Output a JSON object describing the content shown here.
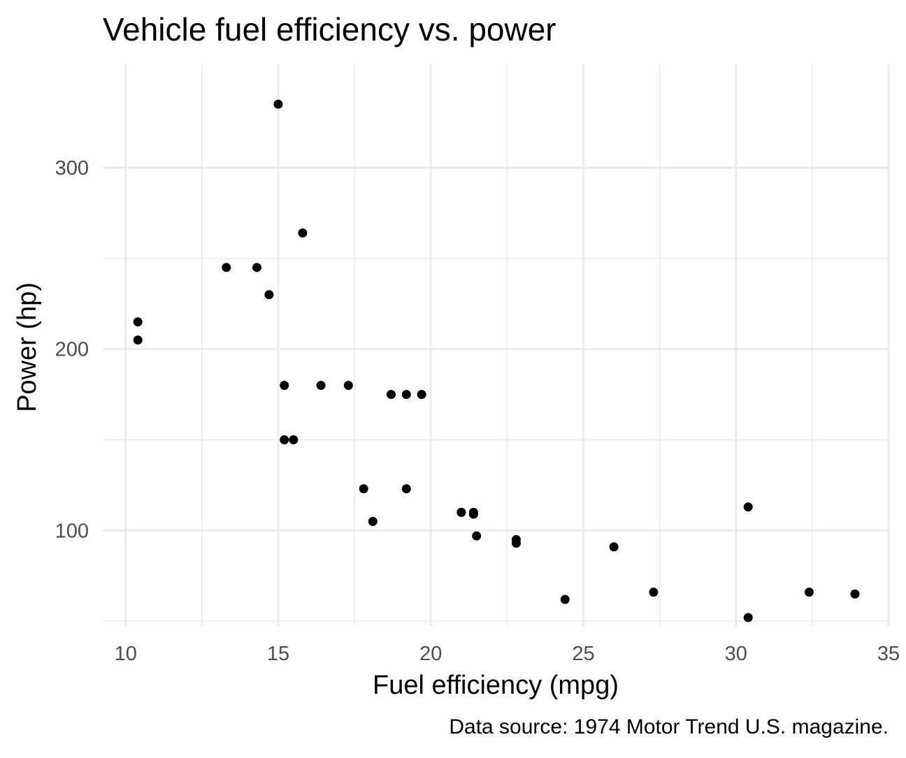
{
  "chart_data": {
    "type": "scatter",
    "title": "Vehicle fuel efficiency vs. power",
    "xlabel": "Fuel efficiency (mpg)",
    "ylabel": "Power (hp)",
    "caption": "Data source: 1974 Motor Trend U.S. magazine.",
    "xlim": [
      9.25,
      35
    ],
    "ylim": [
      47,
      357
    ],
    "x_ticks": [
      10,
      15,
      20,
      25,
      30,
      35
    ],
    "x_tick_labels": [
      "10",
      "15",
      "20",
      "25",
      "30",
      "35"
    ],
    "x_minor_ticks": [
      12.5,
      17.5,
      22.5,
      27.5,
      32.5
    ],
    "y_ticks": [
      100,
      200,
      300
    ],
    "y_tick_labels": [
      "100",
      "200",
      "300"
    ],
    "y_minor_ticks": [
      50,
      150,
      250
    ],
    "grid": true,
    "point_color": "#000000",
    "grid_color": "#ebebeb",
    "points": [
      {
        "x": 21.0,
        "y": 110
      },
      {
        "x": 21.0,
        "y": 110
      },
      {
        "x": 22.8,
        "y": 93
      },
      {
        "x": 21.4,
        "y": 110
      },
      {
        "x": 18.7,
        "y": 175
      },
      {
        "x": 18.1,
        "y": 105
      },
      {
        "x": 14.3,
        "y": 245
      },
      {
        "x": 24.4,
        "y": 62
      },
      {
        "x": 22.8,
        "y": 95
      },
      {
        "x": 19.2,
        "y": 123
      },
      {
        "x": 17.8,
        "y": 123
      },
      {
        "x": 16.4,
        "y": 180
      },
      {
        "x": 17.3,
        "y": 180
      },
      {
        "x": 15.2,
        "y": 180
      },
      {
        "x": 10.4,
        "y": 205
      },
      {
        "x": 10.4,
        "y": 215
      },
      {
        "x": 14.7,
        "y": 230
      },
      {
        "x": 32.4,
        "y": 66
      },
      {
        "x": 30.4,
        "y": 52
      },
      {
        "x": 33.9,
        "y": 65
      },
      {
        "x": 21.5,
        "y": 97
      },
      {
        "x": 15.5,
        "y": 150
      },
      {
        "x": 15.2,
        "y": 150
      },
      {
        "x": 13.3,
        "y": 245
      },
      {
        "x": 19.2,
        "y": 175
      },
      {
        "x": 27.3,
        "y": 66
      },
      {
        "x": 26.0,
        "y": 91
      },
      {
        "x": 30.4,
        "y": 113
      },
      {
        "x": 15.8,
        "y": 264
      },
      {
        "x": 19.7,
        "y": 175
      },
      {
        "x": 15.0,
        "y": 335
      },
      {
        "x": 21.4,
        "y": 109
      }
    ]
  }
}
